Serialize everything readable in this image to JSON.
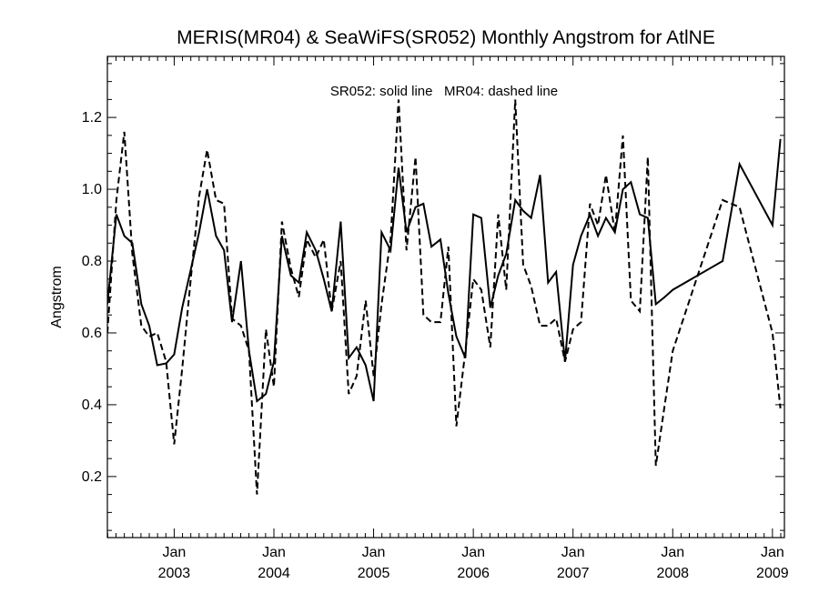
{
  "chart_data": {
    "type": "line",
    "title": "MERIS(MR04) & SeaWiFS(SR052) Monthly Angstrom for AtlNE",
    "xlabel": "",
    "ylabel": "Angstrom",
    "annotation": "SR052: solid line   MR04: dashed line",
    "xlim": [
      2002.33,
      2009.12
    ],
    "ylim": [
      0.03,
      1.37
    ],
    "yticks": [
      0.2,
      0.4,
      0.6,
      0.8,
      1.0,
      1.2
    ],
    "yticklabels": [
      "0.2",
      "0.4",
      "0.6",
      "0.8",
      "1.0",
      "1.2"
    ],
    "xticks": [
      {
        "x": 2003,
        "month": "Jan",
        "year": "2003"
      },
      {
        "x": 2004,
        "month": "Jan",
        "year": "2004"
      },
      {
        "x": 2005,
        "month": "Jan",
        "year": "2005"
      },
      {
        "x": 2006,
        "month": "Jan",
        "year": "2006"
      },
      {
        "x": 2007,
        "month": "Jan",
        "year": "2007"
      },
      {
        "x": 2008,
        "month": "Jan",
        "year": "2008"
      },
      {
        "x": 2009,
        "month": "Jan",
        "year": "2009"
      }
    ],
    "grid": false,
    "series": [
      {
        "name": "SR052",
        "style": "solid",
        "color": "#000000",
        "x": [
          2002.33,
          2002.42,
          2002.5,
          2002.58,
          2002.67,
          2002.75,
          2002.83,
          2002.92,
          2003.0,
          2003.08,
          2003.17,
          2003.25,
          2003.33,
          2003.42,
          2003.5,
          2003.58,
          2003.67,
          2003.75,
          2003.83,
          2003.92,
          2004.0,
          2004.08,
          2004.17,
          2004.25,
          2004.33,
          2004.42,
          2004.5,
          2004.58,
          2004.67,
          2004.75,
          2004.83,
          2004.92,
          2005.0,
          2005.08,
          2005.17,
          2005.25,
          2005.33,
          2005.42,
          2005.5,
          2005.58,
          2005.67,
          2005.75,
          2005.83,
          2005.92,
          2006.0,
          2006.08,
          2006.17,
          2006.25,
          2006.33,
          2006.42,
          2006.5,
          2006.58,
          2006.67,
          2006.75,
          2006.83,
          2006.92,
          2007.0,
          2007.08,
          2007.17,
          2007.25,
          2007.33,
          2007.42,
          2007.5,
          2007.58,
          2007.67,
          2007.75,
          2007.83,
          2007.92,
          2008.0,
          2008.5,
          2008.67,
          2009.0,
          2009.08
        ],
        "y": [
          0.68,
          0.93,
          0.87,
          0.85,
          0.68,
          0.62,
          0.51,
          0.515,
          0.54,
          0.67,
          0.78,
          0.88,
          1.0,
          0.87,
          0.83,
          0.63,
          0.8,
          0.55,
          0.41,
          0.43,
          0.52,
          0.87,
          0.76,
          0.74,
          0.88,
          0.83,
          0.75,
          0.66,
          0.91,
          0.53,
          0.56,
          0.51,
          0.41,
          0.88,
          0.83,
          1.06,
          0.88,
          0.95,
          0.96,
          0.84,
          0.86,
          0.71,
          0.59,
          0.53,
          0.93,
          0.92,
          0.67,
          0.76,
          0.82,
          0.97,
          0.94,
          0.92,
          1.04,
          0.74,
          0.77,
          0.52,
          0.79,
          0.87,
          0.93,
          0.87,
          0.92,
          0.88,
          1.0,
          1.02,
          0.93,
          0.92,
          0.68,
          0.7,
          0.72,
          0.8,
          1.07,
          0.9,
          1.14
        ]
      },
      {
        "name": "MR04",
        "style": "dashed",
        "color": "#000000",
        "x": [
          2002.33,
          2002.42,
          2002.5,
          2002.58,
          2002.67,
          2002.75,
          2002.83,
          2002.92,
          2003.0,
          2003.08,
          2003.17,
          2003.25,
          2003.33,
          2003.42,
          2003.5,
          2003.58,
          2003.67,
          2003.75,
          2003.83,
          2003.92,
          2004.0,
          2004.08,
          2004.17,
          2004.25,
          2004.33,
          2004.42,
          2004.5,
          2004.58,
          2004.67,
          2004.75,
          2004.83,
          2004.92,
          2005.0,
          2005.08,
          2005.17,
          2005.25,
          2005.33,
          2005.42,
          2005.5,
          2005.58,
          2005.67,
          2005.75,
          2005.83,
          2005.92,
          2006.0,
          2006.08,
          2006.17,
          2006.25,
          2006.33,
          2006.42,
          2006.5,
          2006.58,
          2006.67,
          2006.75,
          2006.83,
          2006.92,
          2007.0,
          2007.08,
          2007.17,
          2007.25,
          2007.33,
          2007.42,
          2007.5,
          2007.58,
          2007.67,
          2007.75,
          2007.83,
          2007.92,
          2008.0,
          2008.5,
          2008.67,
          2009.0,
          2009.08
        ],
        "y": [
          0.6,
          0.97,
          1.16,
          0.82,
          0.62,
          0.59,
          0.6,
          0.52,
          0.29,
          0.5,
          0.76,
          0.98,
          1.11,
          0.97,
          0.96,
          0.64,
          0.62,
          0.55,
          0.15,
          0.61,
          0.45,
          0.91,
          0.78,
          0.7,
          0.86,
          0.81,
          0.86,
          0.66,
          0.8,
          0.43,
          0.48,
          0.69,
          0.48,
          0.68,
          0.86,
          1.25,
          0.83,
          1.09,
          0.65,
          0.63,
          0.63,
          0.84,
          0.34,
          0.55,
          0.75,
          0.72,
          0.56,
          0.93,
          0.72,
          1.25,
          0.79,
          0.73,
          0.62,
          0.62,
          0.64,
          0.52,
          0.61,
          0.63,
          0.96,
          0.9,
          1.04,
          0.88,
          1.15,
          0.69,
          0.66,
          1.09,
          0.23,
          0.4,
          0.55,
          0.97,
          0.95,
          0.6,
          0.39
        ]
      }
    ]
  }
}
